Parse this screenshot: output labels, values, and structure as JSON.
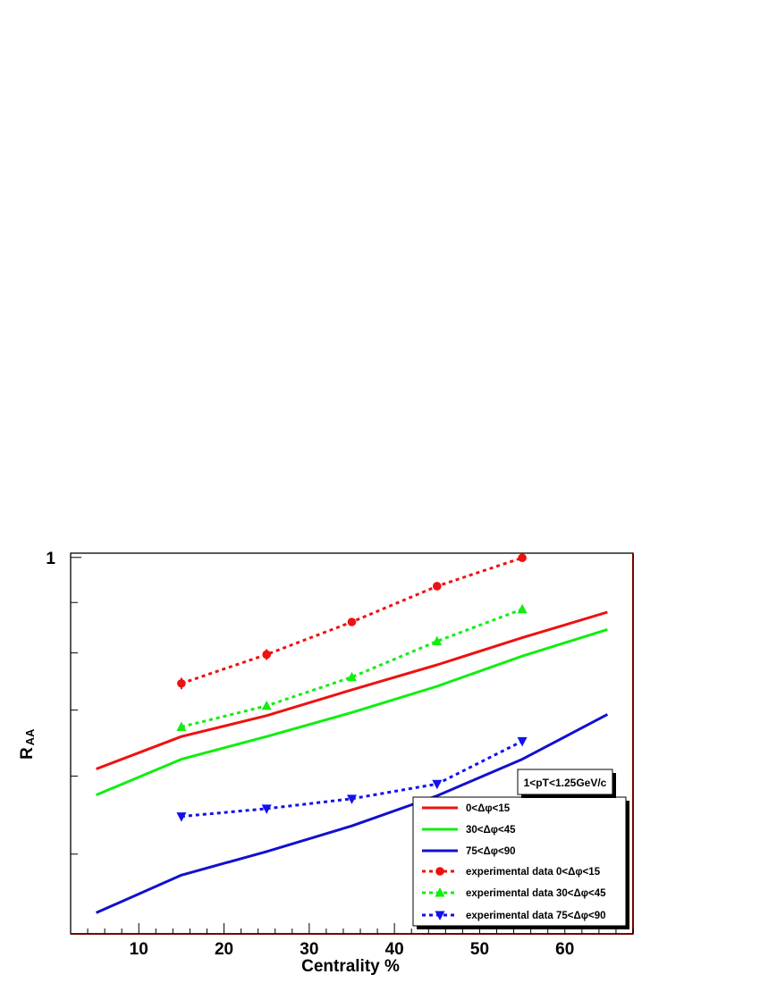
{
  "chart_data": {
    "type": "line",
    "title": "",
    "xlabel": "Centrality %",
    "ylabel_main": "R",
    "ylabel_sub": "AA",
    "xlim": [
      2,
      68
    ],
    "ylim": [
      0.415,
      1.01
    ],
    "log_y": true,
    "x_ticks": [
      10,
      20,
      30,
      40,
      50,
      60
    ],
    "y_tick_labels": [
      "1"
    ],
    "grid": false,
    "legend_position": "bottom-right",
    "annotation": "1<pT<1.25GeV/c",
    "series": [
      {
        "name": "0<Δφ<15",
        "style": "solid",
        "color": "#ee1111",
        "marker": "none",
        "x": [
          5,
          15,
          25,
          35,
          45,
          55,
          65
        ],
        "y": [
          0.61,
          0.658,
          0.691,
          0.734,
          0.778,
          0.829,
          0.88
        ]
      },
      {
        "name": "30<Δφ<45",
        "style": "solid",
        "color": "#11ee11",
        "marker": "none",
        "x": [
          5,
          15,
          25,
          35,
          45,
          55,
          65
        ],
        "y": [
          0.574,
          0.624,
          0.658,
          0.696,
          0.74,
          0.794,
          0.845
        ]
      },
      {
        "name": "75<Δφ<90",
        "style": "solid",
        "color": "#1111cc",
        "marker": "none",
        "x": [
          5,
          15,
          25,
          35,
          45,
          55,
          65
        ],
        "y": [
          0.436,
          0.476,
          0.503,
          0.534,
          0.573,
          0.624,
          0.693
        ]
      },
      {
        "name": "experimental data 0<Δφ<15",
        "style": "dashed",
        "color": "#ee1111",
        "marker": "circle",
        "x": [
          15,
          25,
          35,
          45,
          55
        ],
        "y": [
          0.745,
          0.797,
          0.86,
          0.935,
          0.999
        ],
        "err": [
          0.01,
          0.01,
          0.006,
          0.006,
          0.006
        ]
      },
      {
        "name": "experimental data 30<Δφ<45",
        "style": "dashed",
        "color": "#11ee11",
        "marker": "triangle-up",
        "x": [
          15,
          25,
          35,
          45,
          55
        ],
        "y": [
          0.673,
          0.707,
          0.756,
          0.822,
          0.886
        ]
      },
      {
        "name": "experimental data 75<Δφ<90",
        "style": "dashed",
        "color": "#1111ee",
        "marker": "triangle-down",
        "x": [
          15,
          25,
          35,
          45,
          55
        ],
        "y": [
          0.546,
          0.556,
          0.569,
          0.589,
          0.651
        ]
      }
    ]
  }
}
